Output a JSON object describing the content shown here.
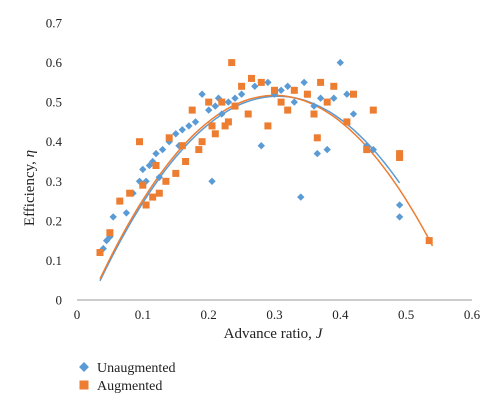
{
  "chart_data": {
    "type": "scatter",
    "title": "",
    "xlabel": {
      "text": "Advance ratio, ",
      "symbol": "J"
    },
    "ylabel": {
      "text": "Efficiency, ",
      "symbol": "η"
    },
    "xlim": [
      0,
      0.6
    ],
    "ylim": [
      0,
      0.7
    ],
    "xticks": [
      "0",
      "0.1",
      "0.2",
      "0.3",
      "0.4",
      "0.5",
      "0.6"
    ],
    "yticks": [
      "0",
      "0.1",
      "0.2",
      "0.3",
      "0.4",
      "0.5",
      "0.6",
      "0.7"
    ],
    "grid": false,
    "legend_position": "bottom-left",
    "series": [
      {
        "name": "Unaugmented",
        "color": "#5B9BD5",
        "marker": "diamond",
        "points": [
          [
            0.04,
            0.13
          ],
          [
            0.045,
            0.15
          ],
          [
            0.05,
            0.16
          ],
          [
            0.055,
            0.21
          ],
          [
            0.065,
            0.25
          ],
          [
            0.075,
            0.22
          ],
          [
            0.085,
            0.27
          ],
          [
            0.095,
            0.3
          ],
          [
            0.1,
            0.33
          ],
          [
            0.105,
            0.3
          ],
          [
            0.11,
            0.34
          ],
          [
            0.115,
            0.35
          ],
          [
            0.12,
            0.37
          ],
          [
            0.125,
            0.31
          ],
          [
            0.13,
            0.38
          ],
          [
            0.14,
            0.4
          ],
          [
            0.15,
            0.42
          ],
          [
            0.155,
            0.39
          ],
          [
            0.16,
            0.43
          ],
          [
            0.17,
            0.44
          ],
          [
            0.18,
            0.45
          ],
          [
            0.19,
            0.52
          ],
          [
            0.2,
            0.48
          ],
          [
            0.205,
            0.3
          ],
          [
            0.21,
            0.49
          ],
          [
            0.215,
            0.51
          ],
          [
            0.22,
            0.47
          ],
          [
            0.23,
            0.5
          ],
          [
            0.24,
            0.51
          ],
          [
            0.25,
            0.52
          ],
          [
            0.27,
            0.54
          ],
          [
            0.28,
            0.39
          ],
          [
            0.29,
            0.55
          ],
          [
            0.3,
            0.52
          ],
          [
            0.31,
            0.53
          ],
          [
            0.32,
            0.54
          ],
          [
            0.33,
            0.5
          ],
          [
            0.34,
            0.26
          ],
          [
            0.345,
            0.55
          ],
          [
            0.35,
            0.52
          ],
          [
            0.36,
            0.49
          ],
          [
            0.365,
            0.37
          ],
          [
            0.37,
            0.51
          ],
          [
            0.38,
            0.38
          ],
          [
            0.39,
            0.51
          ],
          [
            0.4,
            0.6
          ],
          [
            0.41,
            0.52
          ],
          [
            0.42,
            0.47
          ],
          [
            0.44,
            0.39
          ],
          [
            0.45,
            0.38
          ],
          [
            0.49,
            0.24
          ],
          [
            0.49,
            0.21
          ]
        ],
        "fit": [
          0.5,
          0.035,
          0.0415
        ]
      },
      {
        "name": "Augmented",
        "color": "#ED7D31",
        "marker": "square",
        "points": [
          [
            0.035,
            0.12
          ],
          [
            0.05,
            0.17
          ],
          [
            0.065,
            0.25
          ],
          [
            0.08,
            0.27
          ],
          [
            0.095,
            0.4
          ],
          [
            0.1,
            0.29
          ],
          [
            0.105,
            0.24
          ],
          [
            0.115,
            0.26
          ],
          [
            0.12,
            0.34
          ],
          [
            0.125,
            0.27
          ],
          [
            0.135,
            0.3
          ],
          [
            0.14,
            0.41
          ],
          [
            0.15,
            0.32
          ],
          [
            0.16,
            0.39
          ],
          [
            0.165,
            0.35
          ],
          [
            0.175,
            0.48
          ],
          [
            0.185,
            0.38
          ],
          [
            0.19,
            0.4
          ],
          [
            0.2,
            0.5
          ],
          [
            0.205,
            0.44
          ],
          [
            0.21,
            0.42
          ],
          [
            0.22,
            0.5
          ],
          [
            0.225,
            0.44
          ],
          [
            0.23,
            0.45
          ],
          [
            0.235,
            0.6
          ],
          [
            0.24,
            0.49
          ],
          [
            0.25,
            0.54
          ],
          [
            0.26,
            0.47
          ],
          [
            0.265,
            0.56
          ],
          [
            0.28,
            0.55
          ],
          [
            0.29,
            0.44
          ],
          [
            0.3,
            0.53
          ],
          [
            0.31,
            0.5
          ],
          [
            0.32,
            0.48
          ],
          [
            0.33,
            0.53
          ],
          [
            0.35,
            0.52
          ],
          [
            0.36,
            0.47
          ],
          [
            0.365,
            0.41
          ],
          [
            0.37,
            0.55
          ],
          [
            0.38,
            0.5
          ],
          [
            0.39,
            0.54
          ],
          [
            0.41,
            0.45
          ],
          [
            0.42,
            0.52
          ],
          [
            0.44,
            0.38
          ],
          [
            0.45,
            0.48
          ],
          [
            0.49,
            0.36
          ],
          [
            0.49,
            0.37
          ],
          [
            0.535,
            0.15
          ]
        ],
        "fit": [
          0.51,
          0.035,
          0.0458
        ]
      }
    ]
  }
}
